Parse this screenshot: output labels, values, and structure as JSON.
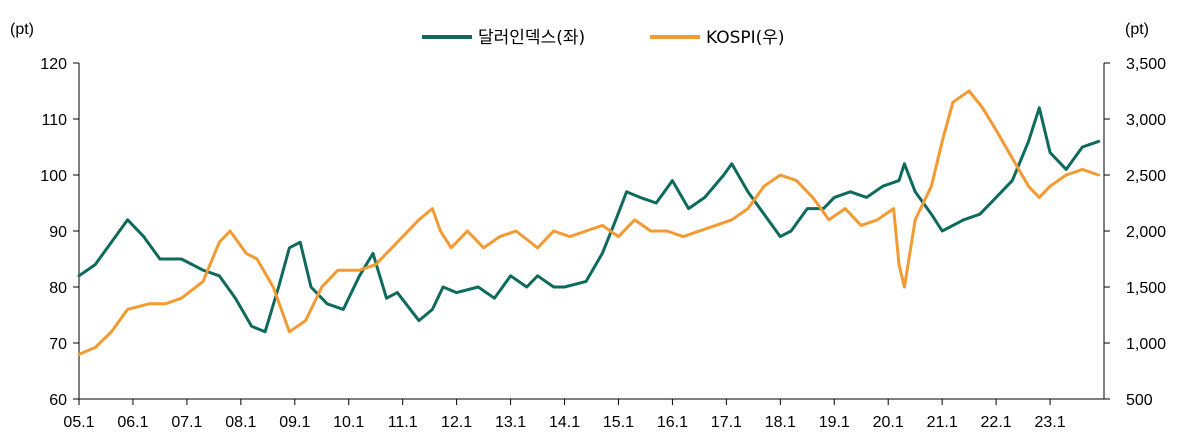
{
  "chart_data": {
    "type": "line",
    "ylabel_left": "(pt)",
    "ylabel_right": "(pt)",
    "ylim_left": [
      60,
      120
    ],
    "ylim_right": [
      500,
      3500
    ],
    "yticks_left": [
      "60",
      "70",
      "80",
      "90",
      "100",
      "110",
      "120"
    ],
    "yticks_right": [
      "500",
      "1,000",
      "1,500",
      "2,000",
      "2,500",
      "3,000",
      "3,500"
    ],
    "xlim": [
      2005.0,
      2024.0
    ],
    "xticks": [
      "05.1",
      "06.1",
      "07.1",
      "08.1",
      "09.1",
      "10.1",
      "11.1",
      "12.1",
      "13.1",
      "14.1",
      "15.1",
      "16.1",
      "17.1",
      "18.1",
      "19.1",
      "20.1",
      "21.1",
      "22.1",
      "23.1"
    ],
    "legend_position": "top",
    "series": [
      {
        "name": "달러인덱스(좌)",
        "axis": "left",
        "color": "#0e6b5c",
        "x": [
          2005.0,
          2005.3,
          2005.9,
          2006.2,
          2006.5,
          2006.9,
          2007.3,
          2007.6,
          2007.9,
          2008.2,
          2008.45,
          2008.7,
          2008.9,
          2009.1,
          2009.3,
          2009.6,
          2009.9,
          2010.2,
          2010.45,
          2010.7,
          2010.9,
          2011.3,
          2011.55,
          2011.75,
          2012.0,
          2012.4,
          2012.7,
          2013.0,
          2013.3,
          2013.5,
          2013.8,
          2014.0,
          2014.4,
          2014.7,
          2014.95,
          2015.15,
          2015.4,
          2015.7,
          2016.0,
          2016.3,
          2016.6,
          2016.95,
          2017.1,
          2017.4,
          2017.7,
          2018.0,
          2018.2,
          2018.5,
          2018.8,
          2019.0,
          2019.3,
          2019.6,
          2019.9,
          2020.2,
          2020.3,
          2020.5,
          2020.8,
          2021.0,
          2021.4,
          2021.7,
          2022.0,
          2022.3,
          2022.6,
          2022.8,
          2023.0,
          2023.3,
          2023.6,
          2023.9
        ],
        "values": [
          82,
          84,
          92,
          89,
          85,
          85,
          83,
          82,
          78,
          73,
          72,
          80,
          87,
          88,
          80,
          77,
          76,
          82,
          86,
          78,
          79,
          74,
          76,
          80,
          79,
          80,
          78,
          82,
          80,
          82,
          80,
          80,
          81,
          86,
          92,
          97,
          96,
          95,
          99,
          94,
          96,
          100,
          102,
          97,
          93,
          89,
          90,
          94,
          94,
          96,
          97,
          96,
          98,
          99,
          102,
          97,
          93,
          90,
          92,
          93,
          96,
          99,
          106,
          112,
          104,
          101,
          105,
          106
        ]
      },
      {
        "name": "KOSPI(우)",
        "axis": "right",
        "color": "#f39a33",
        "x": [
          2005.0,
          2005.3,
          2005.6,
          2005.9,
          2006.3,
          2006.6,
          2006.9,
          2007.3,
          2007.6,
          2007.8,
          2008.1,
          2008.3,
          2008.6,
          2008.9,
          2009.2,
          2009.5,
          2009.8,
          2010.2,
          2010.5,
          2010.9,
          2011.3,
          2011.55,
          2011.7,
          2011.9,
          2012.2,
          2012.5,
          2012.8,
          2013.1,
          2013.5,
          2013.8,
          2014.1,
          2014.4,
          2014.7,
          2015.0,
          2015.3,
          2015.6,
          2015.9,
          2016.2,
          2016.5,
          2016.8,
          2017.1,
          2017.4,
          2017.7,
          2018.0,
          2018.3,
          2018.6,
          2018.9,
          2019.2,
          2019.5,
          2019.8,
          2020.1,
          2020.2,
          2020.3,
          2020.5,
          2020.8,
          2021.0,
          2021.2,
          2021.5,
          2021.75,
          2022.0,
          2022.3,
          2022.6,
          2022.8,
          2023.0,
          2023.3,
          2023.6,
          2023.9
        ],
        "values": [
          900,
          960,
          1100,
          1300,
          1350,
          1350,
          1400,
          1550,
          1900,
          2000,
          1800,
          1750,
          1500,
          1100,
          1200,
          1500,
          1650,
          1650,
          1700,
          1900,
          2100,
          2200,
          2000,
          1850,
          2000,
          1850,
          1950,
          2000,
          1850,
          2000,
          1950,
          2000,
          2050,
          1950,
          2100,
          2000,
          2000,
          1950,
          2000,
          2050,
          2100,
          2200,
          2400,
          2500,
          2450,
          2300,
          2100,
          2200,
          2050,
          2100,
          2200,
          1700,
          1500,
          2100,
          2400,
          2800,
          3150,
          3250,
          3100,
          2900,
          2650,
          2400,
          2300,
          2400,
          2500,
          2550,
          2500
        ]
      }
    ]
  }
}
